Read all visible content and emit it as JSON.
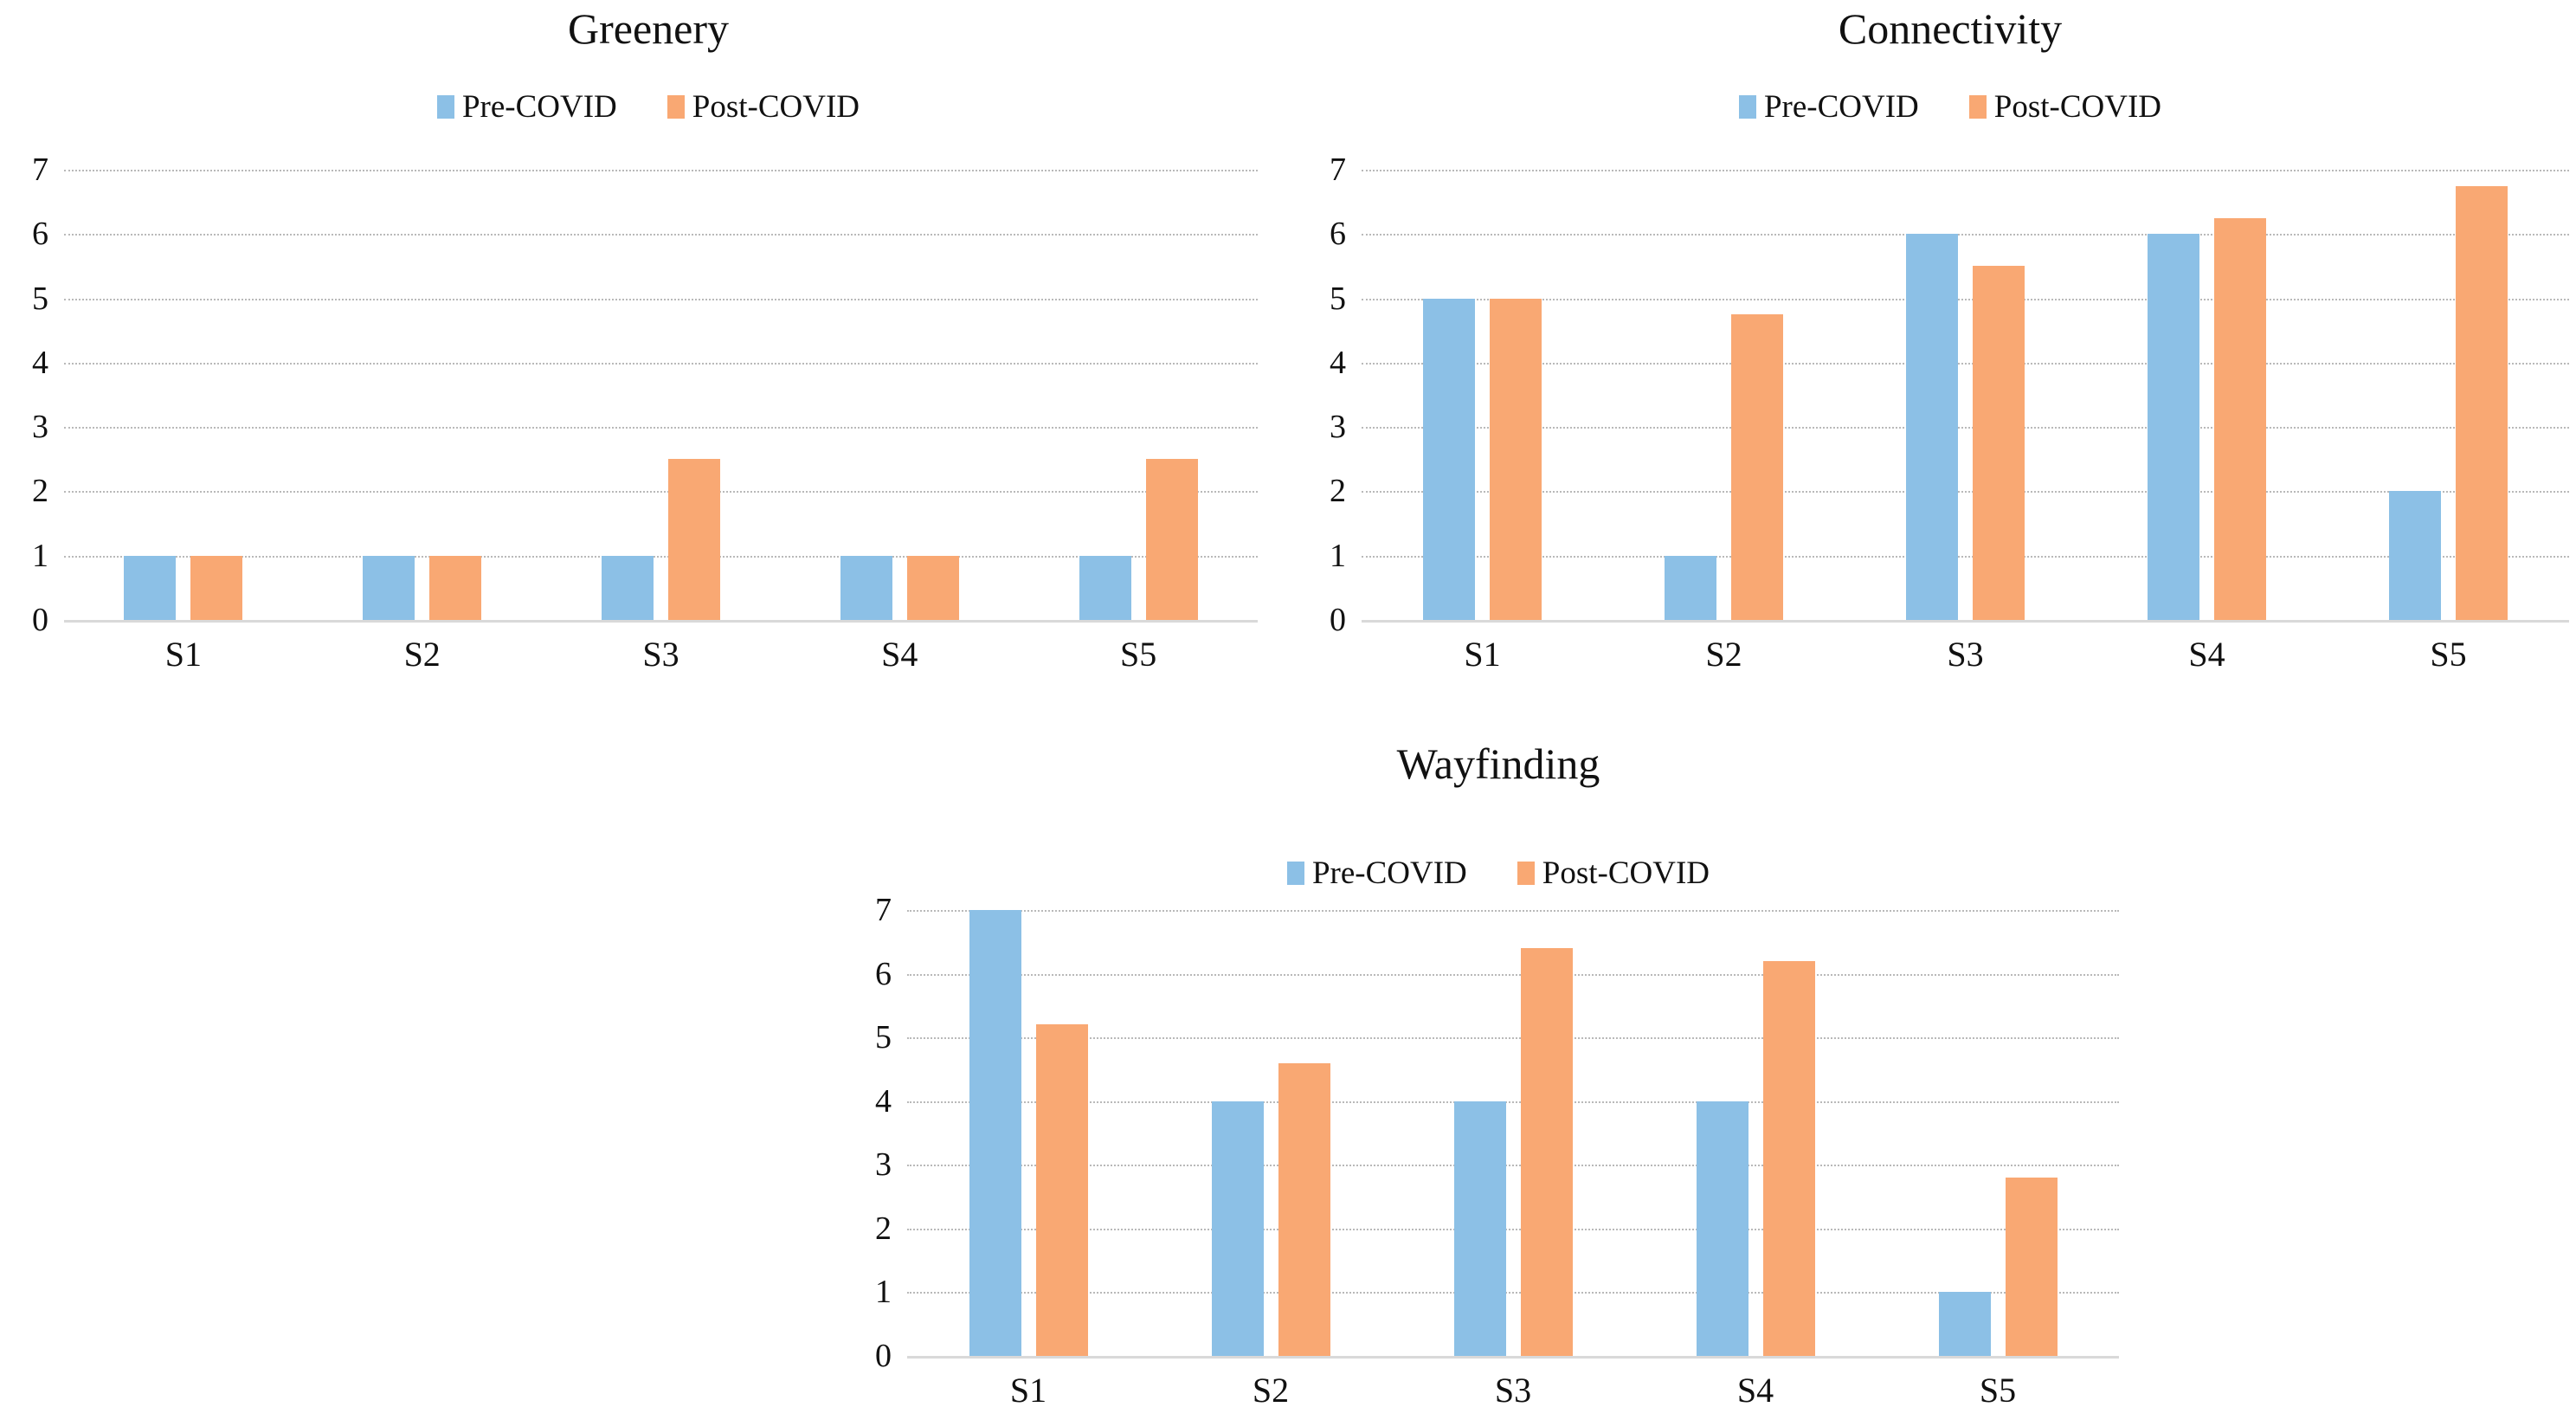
{
  "page": {
    "background": "#ffffff"
  },
  "colors": {
    "pre_covid": "#8cc0e6",
    "post_covid": "#f9a873",
    "gridline": "#b9b9b9",
    "text": "#111111"
  },
  "chart_data": [
    {
      "id": "greenery",
      "type": "bar",
      "title": "Greenery",
      "categories": [
        "S1",
        "S2",
        "S3",
        "S4",
        "S5"
      ],
      "series": [
        {
          "name": "Pre-COVID",
          "color_key": "pre_covid",
          "values": [
            1,
            1,
            1,
            1,
            1
          ]
        },
        {
          "name": "Post-COVID",
          "color_key": "post_covid",
          "values": [
            1,
            1,
            2.5,
            1,
            2.5
          ]
        }
      ],
      "ylim": [
        0,
        7
      ],
      "yticks": [
        0,
        1,
        2,
        3,
        4,
        5,
        6,
        7
      ],
      "grid": true,
      "legend_position": "top"
    },
    {
      "id": "connectivity",
      "type": "bar",
      "title": "Connectivity",
      "categories": [
        "S1",
        "S2",
        "S3",
        "S4",
        "S5"
      ],
      "series": [
        {
          "name": "Pre-COVID",
          "color_key": "pre_covid",
          "values": [
            5,
            1,
            6,
            6,
            2
          ]
        },
        {
          "name": "Post-COVID",
          "color_key": "post_covid",
          "values": [
            5,
            4.75,
            5.5,
            6.25,
            6.75
          ]
        }
      ],
      "ylim": [
        0,
        7
      ],
      "yticks": [
        0,
        1,
        2,
        3,
        4,
        5,
        6,
        7
      ],
      "grid": true,
      "legend_position": "top"
    },
    {
      "id": "wayfinding",
      "type": "bar",
      "title": "Wayfinding",
      "categories": [
        "S1",
        "S2",
        "S3",
        "S4",
        "S5"
      ],
      "series": [
        {
          "name": "Pre-COVID",
          "color_key": "pre_covid",
          "values": [
            7,
            4,
            4,
            4,
            1
          ]
        },
        {
          "name": "Post-COVID",
          "color_key": "post_covid",
          "values": [
            5.2,
            4.6,
            6.4,
            6.2,
            2.8
          ]
        }
      ],
      "ylim": [
        0,
        7
      ],
      "yticks": [
        0,
        1,
        2,
        3,
        4,
        5,
        6,
        7
      ],
      "grid": true,
      "legend_position": "top"
    }
  ]
}
